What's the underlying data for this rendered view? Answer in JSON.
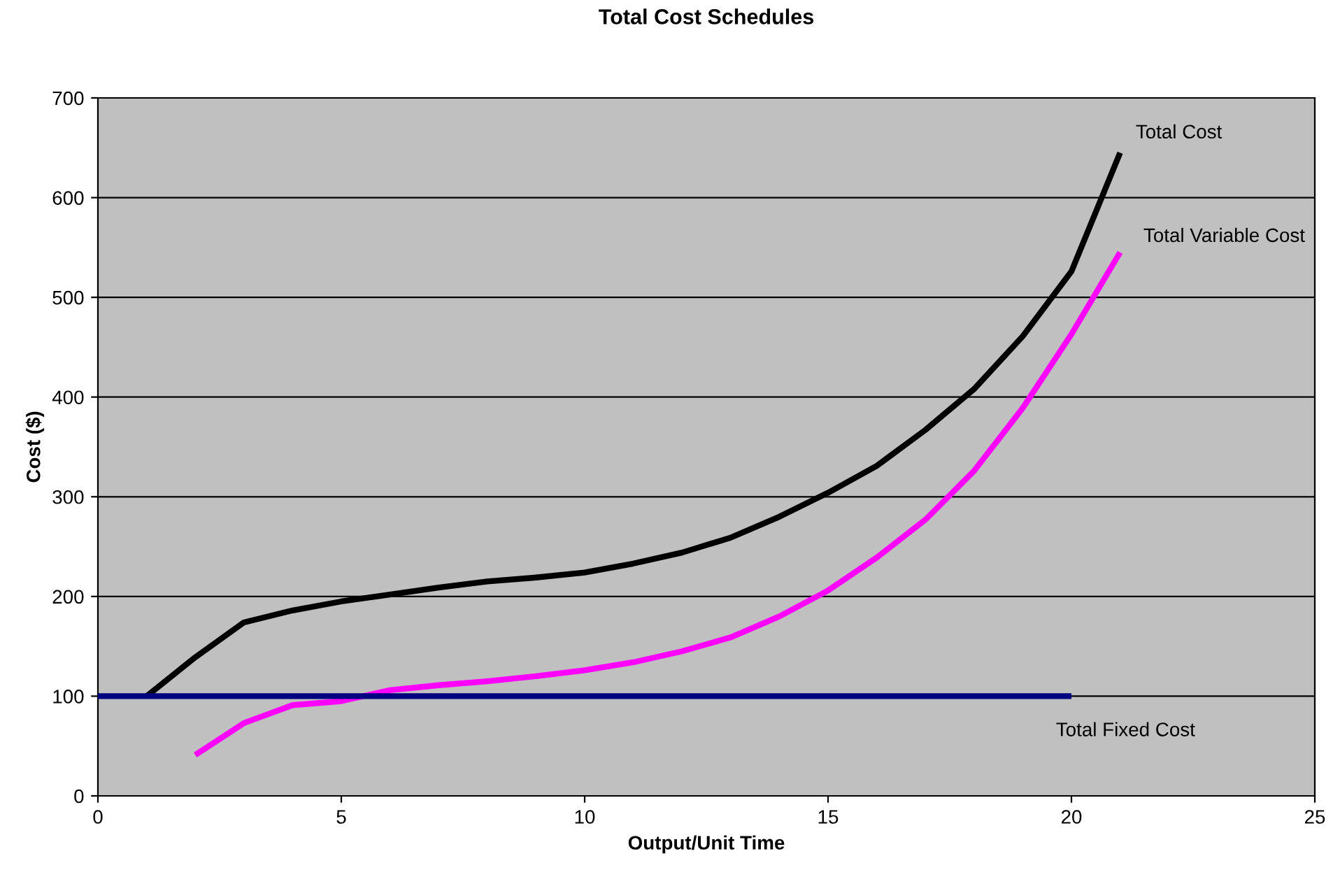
{
  "chart_data": {
    "type": "line",
    "title": "Total Cost Schedules",
    "xlabel": "Output/Unit Time",
    "ylabel": "Cost ($)",
    "xlim": [
      0,
      25
    ],
    "xticks": [
      0,
      5,
      10,
      15,
      20,
      25
    ],
    "ylim": [
      0,
      700
    ],
    "yticks": [
      0,
      100,
      200,
      300,
      400,
      500,
      600,
      700
    ],
    "grid": "y",
    "marker": "none",
    "line_style": "solid",
    "series": [
      {
        "name": "Total Cost",
        "color": "#000000",
        "x": [
          1,
          2,
          3,
          4,
          5,
          6,
          7,
          8,
          9,
          10,
          11,
          12,
          13,
          14,
          15,
          16,
          17,
          18,
          19,
          20,
          21
        ],
        "values": [
          100,
          139,
          174,
          186,
          195,
          202,
          209,
          215,
          219,
          224,
          233,
          244,
          259,
          280,
          304,
          331,
          367,
          408,
          461,
          526,
          645
        ]
      },
      {
        "name": "Total Variable Cost",
        "color": "#ff00ff",
        "x": [
          2,
          3,
          4,
          5,
          6,
          7,
          8,
          9,
          10,
          11,
          12,
          13,
          14,
          15,
          16,
          17,
          18,
          19,
          20,
          21
        ],
        "values": [
          41,
          73,
          91,
          95,
          106,
          111,
          115,
          120,
          126,
          134,
          145,
          159,
          180,
          206,
          239,
          277,
          326,
          389,
          463,
          545
        ]
      },
      {
        "name": "Total Fixed Cost",
        "color": "#000080",
        "x": [
          0,
          1,
          2,
          3,
          4,
          5,
          6,
          7,
          8,
          9,
          10,
          11,
          12,
          13,
          14,
          15,
          16,
          17,
          18,
          19,
          20
        ],
        "values": [
          100,
          100,
          100,
          100,
          100,
          100,
          100,
          100,
          100,
          100,
          100,
          100,
          100,
          100,
          100,
          100,
          100,
          100,
          100,
          100,
          100
        ]
      }
    ]
  }
}
